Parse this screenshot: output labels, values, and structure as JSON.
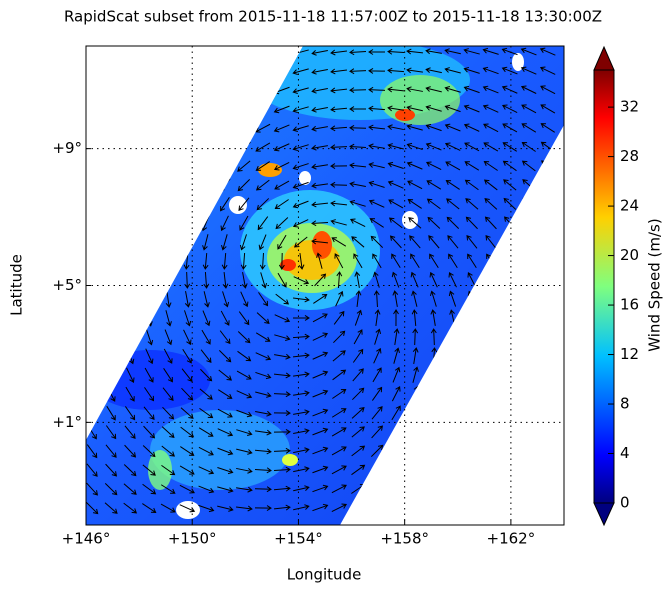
{
  "chart_data": {
    "type": "map",
    "title": "RapidScat subset from 2015-11-18 11:57:00Z to 2015-11-18 13:30:00Z",
    "xlabel": "Longitude",
    "ylabel": "Latitude",
    "xlim": [
      146,
      164
    ],
    "ylim": [
      -2,
      12
    ],
    "xticks": [
      {
        "value": 146,
        "label": "+146°"
      },
      {
        "value": 150,
        "label": "+150°"
      },
      {
        "value": 154,
        "label": "+154°"
      },
      {
        "value": 158,
        "label": "+158°"
      },
      {
        "value": 162,
        "label": "+162°"
      }
    ],
    "yticks": [
      {
        "value": 1,
        "label": "+1°"
      },
      {
        "value": 5,
        "label": "+5°"
      },
      {
        "value": 9,
        "label": "+9°"
      }
    ],
    "grid": true,
    "colorbar": {
      "label": "Wind Speed (m/s)",
      "lim": [
        0,
        35
      ],
      "ticks": [
        0,
        4,
        8,
        12,
        16,
        20,
        24,
        28,
        32
      ]
    }
  }
}
